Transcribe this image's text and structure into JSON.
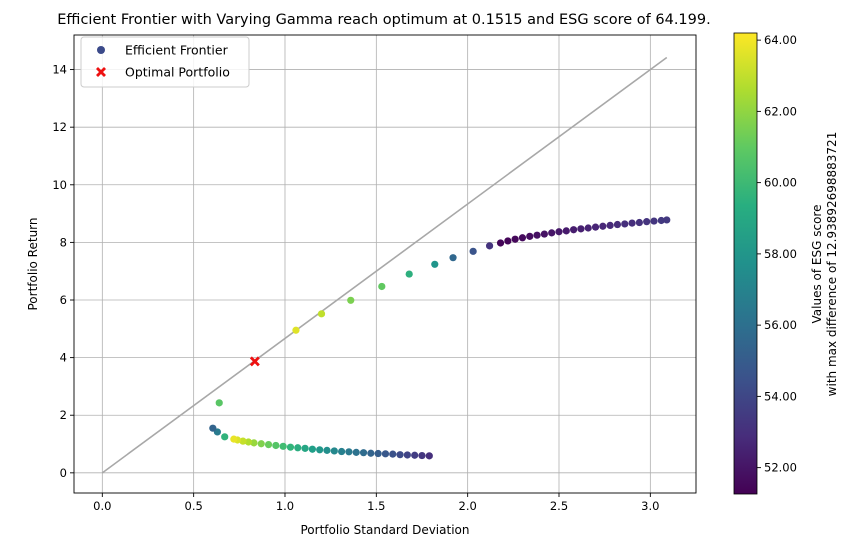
{
  "chart_data": {
    "type": "scatter",
    "title": "Efficient Frontier with Varying Gamma reach optimum at 0.1515 and ESG score of 64.199.",
    "xlabel": "Portfolio Standard Deviation",
    "ylabel": "Portfolio Return",
    "xlim": [
      -0.155,
      3.25
    ],
    "ylim": [
      -0.7,
      15.2
    ],
    "xticks": [
      0.0,
      0.5,
      1.0,
      1.5,
      2.0,
      2.5,
      3.0
    ],
    "xtick_labels": [
      "0.0",
      "0.5",
      "1.0",
      "1.5",
      "2.0",
      "2.5",
      "3.0"
    ],
    "yticks": [
      0,
      2,
      4,
      6,
      8,
      10,
      12,
      14
    ],
    "ytick_labels": [
      "0",
      "2",
      "4",
      "6",
      "8",
      "10",
      "12",
      "14"
    ],
    "grid": true,
    "legend_position": "upper-left",
    "legend": [
      {
        "label": "Efficient Frontier",
        "marker": "circle",
        "color": "#3b4a8a"
      },
      {
        "label": "Optimal Portfolio",
        "marker": "x",
        "color": "#ee1111"
      }
    ],
    "colorbar": {
      "label_line1": "Values of ESG score",
      "label_line2": "with max difference of 12.93892698883721",
      "range": [
        51.26,
        64.2
      ],
      "ticks": [
        52,
        54,
        56,
        58,
        60,
        62,
        64
      ],
      "tick_labels": [
        "52.00",
        "54.00",
        "56.00",
        "58.00",
        "60.00",
        "62.00",
        "64.00"
      ],
      "colormap": "viridis"
    },
    "capital_market_line": {
      "x": [
        0.0,
        3.09
      ],
      "y": [
        0.0,
        14.42
      ],
      "color": "#a8a8a8"
    },
    "optimal_portfolio": {
      "x": 0.835,
      "y": 3.87,
      "color": "#ee1111"
    },
    "scatter_points": [
      {
        "x": 1.79,
        "y": 0.59,
        "esg": 53.0
      },
      {
        "x": 1.75,
        "y": 0.6,
        "esg": 53.3
      },
      {
        "x": 1.71,
        "y": 0.61,
        "esg": 53.6
      },
      {
        "x": 1.67,
        "y": 0.62,
        "esg": 53.9
      },
      {
        "x": 1.63,
        "y": 0.63,
        "esg": 54.2
      },
      {
        "x": 1.59,
        "y": 0.65,
        "esg": 54.5
      },
      {
        "x": 1.55,
        "y": 0.66,
        "esg": 54.8
      },
      {
        "x": 1.51,
        "y": 0.67,
        "esg": 55.1
      },
      {
        "x": 1.47,
        "y": 0.68,
        "esg": 55.4
      },
      {
        "x": 1.43,
        "y": 0.7,
        "esg": 55.8
      },
      {
        "x": 1.39,
        "y": 0.71,
        "esg": 56.1
      },
      {
        "x": 1.35,
        "y": 0.73,
        "esg": 56.5
      },
      {
        "x": 1.31,
        "y": 0.74,
        "esg": 56.9
      },
      {
        "x": 1.27,
        "y": 0.76,
        "esg": 57.3
      },
      {
        "x": 1.23,
        "y": 0.78,
        "esg": 57.7
      },
      {
        "x": 1.19,
        "y": 0.8,
        "esg": 58.1
      },
      {
        "x": 1.15,
        "y": 0.82,
        "esg": 58.5
      },
      {
        "x": 1.11,
        "y": 0.85,
        "esg": 58.9
      },
      {
        "x": 1.07,
        "y": 0.87,
        "esg": 59.3
      },
      {
        "x": 1.03,
        "y": 0.89,
        "esg": 59.7
      },
      {
        "x": 0.99,
        "y": 0.92,
        "esg": 60.2
      },
      {
        "x": 0.95,
        "y": 0.95,
        "esg": 60.7
      },
      {
        "x": 0.91,
        "y": 0.98,
        "esg": 61.2
      },
      {
        "x": 0.87,
        "y": 1.01,
        "esg": 61.7
      },
      {
        "x": 0.83,
        "y": 1.04,
        "esg": 62.2
      },
      {
        "x": 0.8,
        "y": 1.07,
        "esg": 62.7
      },
      {
        "x": 0.77,
        "y": 1.1,
        "esg": 63.1
      },
      {
        "x": 0.74,
        "y": 1.14,
        "esg": 63.5
      },
      {
        "x": 0.72,
        "y": 1.17,
        "esg": 63.8
      },
      {
        "x": 0.67,
        "y": 1.25,
        "esg": 59.6
      },
      {
        "x": 0.63,
        "y": 1.42,
        "esg": 56.6
      },
      {
        "x": 0.605,
        "y": 1.55,
        "esg": 55.4
      },
      {
        "x": 0.64,
        "y": 2.43,
        "esg": 60.8
      },
      {
        "x": 1.06,
        "y": 4.95,
        "esg": 63.6
      },
      {
        "x": 1.2,
        "y": 5.52,
        "esg": 63.0
      },
      {
        "x": 1.36,
        "y": 5.99,
        "esg": 61.6
      },
      {
        "x": 1.53,
        "y": 6.47,
        "esg": 61.0
      },
      {
        "x": 1.68,
        "y": 6.9,
        "esg": 59.4
      },
      {
        "x": 1.82,
        "y": 7.24,
        "esg": 58.0
      },
      {
        "x": 1.92,
        "y": 7.47,
        "esg": 55.6
      },
      {
        "x": 2.03,
        "y": 7.69,
        "esg": 54.6
      },
      {
        "x": 2.12,
        "y": 7.88,
        "esg": 53.2
      },
      {
        "x": 2.18,
        "y": 7.98,
        "esg": 51.4
      },
      {
        "x": 2.22,
        "y": 8.05,
        "esg": 51.4
      },
      {
        "x": 2.26,
        "y": 8.11,
        "esg": 51.5
      },
      {
        "x": 2.3,
        "y": 8.16,
        "esg": 51.6
      },
      {
        "x": 2.34,
        "y": 8.21,
        "esg": 51.7
      },
      {
        "x": 2.38,
        "y": 8.25,
        "esg": 51.8
      },
      {
        "x": 2.42,
        "y": 8.29,
        "esg": 51.9
      },
      {
        "x": 2.46,
        "y": 8.33,
        "esg": 52.0
      },
      {
        "x": 2.5,
        "y": 8.37,
        "esg": 52.1
      },
      {
        "x": 2.54,
        "y": 8.4,
        "esg": 52.2
      },
      {
        "x": 2.58,
        "y": 8.44,
        "esg": 52.3
      },
      {
        "x": 2.62,
        "y": 8.47,
        "esg": 52.4
      },
      {
        "x": 2.66,
        "y": 8.5,
        "esg": 52.5
      },
      {
        "x": 2.7,
        "y": 8.53,
        "esg": 52.6
      },
      {
        "x": 2.74,
        "y": 8.56,
        "esg": 52.7
      },
      {
        "x": 2.78,
        "y": 8.59,
        "esg": 52.8
      },
      {
        "x": 2.82,
        "y": 8.62,
        "esg": 52.9
      },
      {
        "x": 2.86,
        "y": 8.64,
        "esg": 53.0
      },
      {
        "x": 2.9,
        "y": 8.67,
        "esg": 53.0
      },
      {
        "x": 2.94,
        "y": 8.69,
        "esg": 53.1
      },
      {
        "x": 2.98,
        "y": 8.72,
        "esg": 53.2
      },
      {
        "x": 3.02,
        "y": 8.74,
        "esg": 53.3
      },
      {
        "x": 3.06,
        "y": 8.76,
        "esg": 53.4
      },
      {
        "x": 3.09,
        "y": 8.78,
        "esg": 53.4
      }
    ]
  }
}
